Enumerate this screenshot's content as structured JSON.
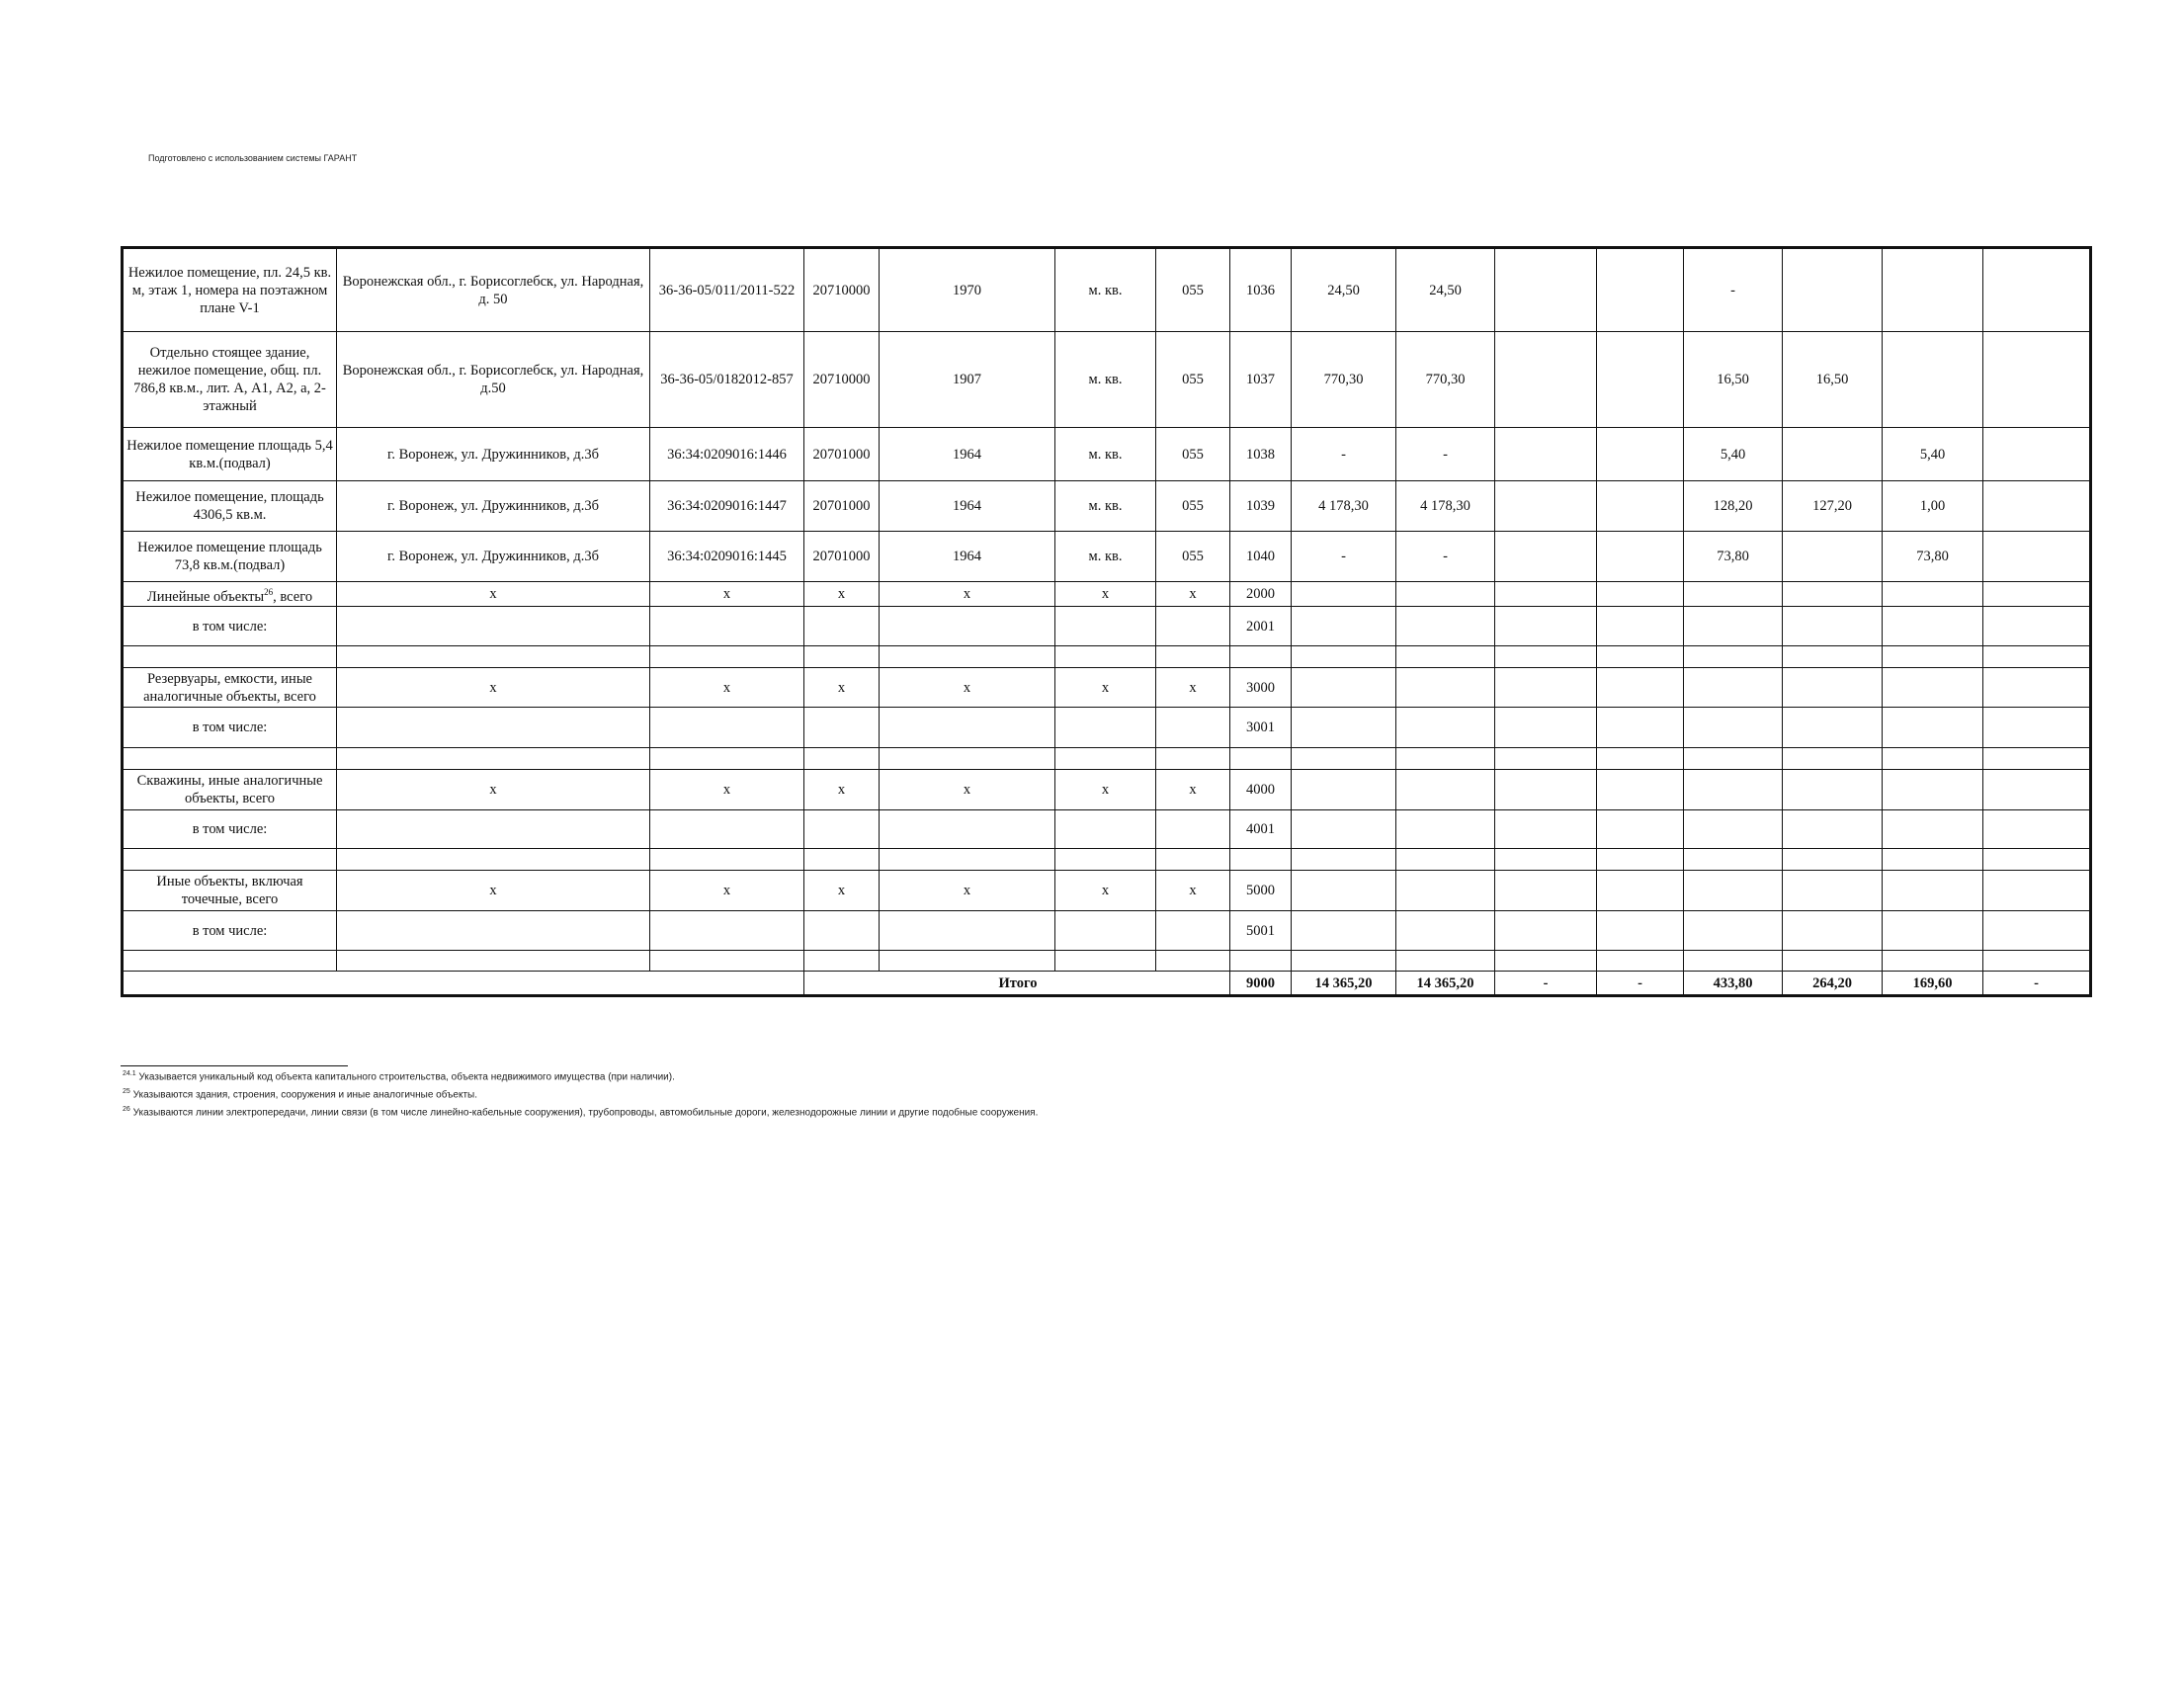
{
  "header": "Подготовлено с использованием системы ГАРАНТ",
  "rows": [
    [
      "Нежилое помещение, пл. 24,5 кв. м, этаж 1, номера на поэтажном плане V-1",
      "Воронежская обл., г. Борисоглебск, ул. Народная, д. 50",
      "36-36-05/011/2011-522",
      "20710000",
      "1970",
      "м. кв.",
      "055",
      "1036",
      "24,50",
      "24,50",
      "",
      "",
      "-",
      "",
      "",
      ""
    ],
    [
      "Отдельно стоящее здание, нежилое помещение, общ. пл. 786,8 кв.м., лит. А, А1, А2, а, 2-этажный",
      "Воронежская обл., г. Борисоглебск, ул. Народная, д.50",
      "36-36-05/0182012-857",
      "20710000",
      "1907",
      "м. кв.",
      "055",
      "1037",
      "770,30",
      "770,30",
      "",
      "",
      "16,50",
      "16,50",
      "",
      ""
    ],
    [
      "Нежилое помещение площадь 5,4 кв.м.(подвал)",
      "г. Воронеж, ул. Дружинников, д.3б",
      "36:34:0209016:1446",
      "20701000",
      "1964",
      "м. кв.",
      "055",
      "1038",
      "-",
      "-",
      "",
      "",
      "5,40",
      "",
      "5,40",
      ""
    ],
    [
      "Нежилое помещение, площадь 4306,5 кв.м.",
      "г. Воронеж, ул. Дружинников, д.3б",
      "36:34:0209016:1447",
      "20701000",
      "1964",
      "м. кв.",
      "055",
      "1039",
      "4 178,30",
      "4 178,30",
      "",
      "",
      "128,20",
      "127,20",
      "1,00",
      ""
    ],
    [
      "Нежилое помещение площадь 73,8 кв.м.(подвал)",
      "г. Воронеж, ул. Дружинников, д.3б",
      "36:34:0209016:1445",
      "20701000",
      "1964",
      "м. кв.",
      "055",
      "1040",
      "-",
      "-",
      "",
      "",
      "73,80",
      "",
      "73,80",
      ""
    ]
  ],
  "groups": [
    {
      "label": "Линейные объекты",
      "sup": "26",
      "label_suffix": ", всего",
      "marks": [
        "x",
        "x",
        "x",
        "x",
        "x",
        "x"
      ],
      "code": "2000",
      "sub_label": "в том числе:",
      "sub_code": "2001"
    },
    {
      "label": "Резервуары, емкости, иные аналогичные объекты, всего",
      "sup": "",
      "label_suffix": "",
      "marks": [
        "x",
        "x",
        "x",
        "x",
        "x",
        "x"
      ],
      "code": "3000",
      "sub_label": "в том числе:",
      "sub_code": "3001"
    },
    {
      "label": "Скважины, иные аналогичные объекты, всего",
      "sup": "",
      "label_suffix": "",
      "marks": [
        "x",
        "x",
        "x",
        "x",
        "x",
        "x"
      ],
      "code": "4000",
      "sub_label": "в том числе:",
      "sub_code": "4001"
    },
    {
      "label": "Иные объекты, включая точечные, всего",
      "sup": "",
      "label_suffix": "",
      "marks": [
        "x",
        "x",
        "x",
        "x",
        "x",
        "x"
      ],
      "code": "5000",
      "sub_label": "в том числе:",
      "sub_code": "5001"
    }
  ],
  "total": {
    "label": "Итого",
    "code": "9000",
    "values": [
      "14 365,20",
      "14 365,20",
      "-",
      "-",
      "433,80",
      "264,20",
      "169,60",
      "-"
    ]
  },
  "footnotes": [
    {
      "mark": "24.1",
      "text": "Указывается уникальный код объекта капитального строительства, объекта недвижимого имущества (при наличии)."
    },
    {
      "mark": "25",
      "text": "Указываются здания, строения, сооружения и иные аналогичные объекты."
    },
    {
      "mark": "26",
      "text": "Указываются линии электропередачи, линии связи (в том числе линейно-кабельные сооружения), трубопроводы, автомобильные дороги, железнодорожные линии и другие подобные сооружения."
    }
  ]
}
